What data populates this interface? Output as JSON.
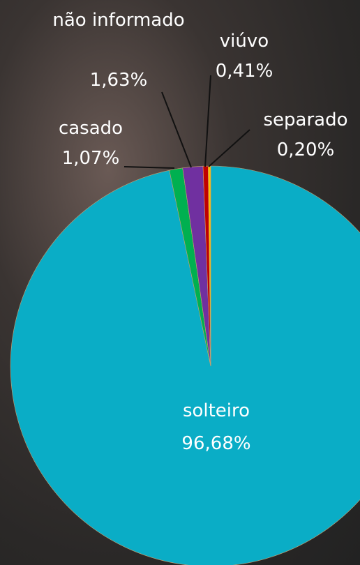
{
  "chart_data": {
    "type": "pie",
    "categories": [
      "solteiro",
      "casado",
      "não informado",
      "viúvo",
      "separado"
    ],
    "values": [
      96.68,
      1.07,
      1.63,
      0.41,
      0.2
    ],
    "value_labels": [
      "96,68%",
      "1,07%",
      "1,63%",
      "0,41%",
      "0,20%"
    ],
    "colors": [
      "#0aadc6",
      "#00b050",
      "#7030a0",
      "#c00000",
      "#ffc000"
    ]
  }
}
